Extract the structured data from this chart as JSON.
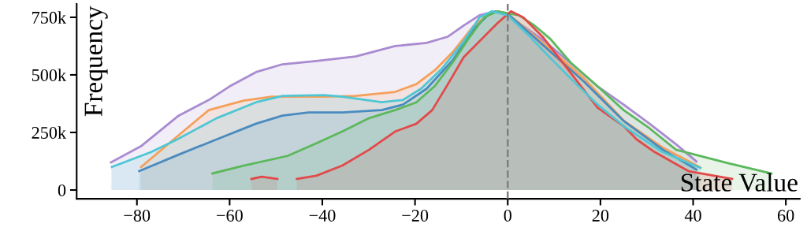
{
  "chart_data": {
    "type": "area",
    "xlabel": "State Value",
    "ylabel": "Frequency",
    "xlim": [
      -93,
      63
    ],
    "xticks": [
      {
        "value": -80,
        "label": "−80"
      },
      {
        "value": -60,
        "label": "−60"
      },
      {
        "value": -40,
        "label": "−40"
      },
      {
        "value": -20,
        "label": "−20"
      },
      0,
      20,
      40,
      60
    ],
    "ylim": [
      -38000,
      808000
    ],
    "yticks": [
      0,
      {
        "value": 250000,
        "label": "250k"
      },
      {
        "value": 500000,
        "label": "500k"
      },
      {
        "value": 750000,
        "label": "750k"
      }
    ],
    "grid": false,
    "ref_lines": [
      {
        "axis": "x",
        "value": 0,
        "label": null,
        "color": "#808080",
        "line_style": "dashed"
      }
    ],
    "series": [
      {
        "color": "#a98bd0",
        "x": [
          -85.6,
          -79,
          -71,
          -64.5,
          -60,
          -54.3,
          -48.6,
          -41.3,
          -32.8,
          -24.3,
          -17.5,
          -12.9,
          -9.5,
          -6.1,
          -2.7,
          0,
          8,
          19.4,
          25,
          30.6,
          36.3,
          40.7
        ],
        "values": [
          120000,
          192000,
          323000,
          391000,
          450000,
          512000,
          546000,
          560000,
          580000,
          625000,
          639000,
          666000,
          714000,
          759000,
          776000,
          760000,
          646000,
          450000,
          371000,
          288000,
          199000,
          124000
        ]
      },
      {
        "color": "#f5a05a",
        "x": [
          -79.1,
          -71.3,
          -64.5,
          -57,
          -51,
          -39.6,
          -32.8,
          -24.3,
          -19.7,
          -15.8,
          -11.9,
          -7.3,
          -3.9,
          -2,
          0,
          8,
          16.5,
          25,
          33.4,
          41.4
        ],
        "values": [
          100000,
          233000,
          347000,
          388000,
          405000,
          405000,
          409000,
          426000,
          460000,
          519000,
          598000,
          714000,
          766000,
          776000,
          765000,
          632000,
          484000,
          302000,
          185000,
          100000
        ]
      },
      {
        "color": "#4a8bbf",
        "x": [
          -79.5,
          -71.3,
          -62.8,
          -54.3,
          -48.6,
          -43,
          -35.7,
          -27.2,
          -22.6,
          -17.5,
          -11.9,
          -7.3,
          -3.9,
          -2.5,
          0,
          8,
          16.5,
          25,
          33.4,
          40.7
        ],
        "values": [
          82000,
          151000,
          220000,
          288000,
          323000,
          337000,
          337000,
          347000,
          371000,
          440000,
          563000,
          700000,
          766000,
          776000,
          765000,
          622000,
          470000,
          300000,
          176000,
          89000
        ]
      },
      {
        "color": "#5cb85c",
        "x": [
          -63.7,
          -57,
          -47.5,
          -41.3,
          -35.7,
          -29.9,
          -24.3,
          -19.7,
          -15.8,
          -11.9,
          -8.5,
          -5.1,
          -2.2,
          2.4,
          5.8,
          9.2,
          13.6,
          19.4,
          25,
          30.6,
          36.3,
          47.5,
          56.9
        ],
        "values": [
          72000,
          106000,
          148000,
          203000,
          254000,
          312000,
          347000,
          381000,
          450000,
          553000,
          656000,
          749000,
          776000,
          759000,
          714000,
          656000,
          553000,
          450000,
          347000,
          268000,
          175000,
          117000,
          72000
        ]
      },
      {
        "color": "#e24a4a",
        "x": [
          -55.3,
          -53.1,
          -49.7,
          -47.6,
          -45.5,
          -41.3,
          -35.7,
          -29.9,
          -24.3,
          -19.7,
          -16.3,
          -12.9,
          -9.5,
          -5.6,
          -2.2,
          0.7,
          3.4,
          7.5,
          13.6,
          19.4,
          25,
          27.8,
          31.7,
          39,
          48.4
        ],
        "values": [
          48000,
          58000,
          48000,
          null,
          48000,
          62000,
          106000,
          175000,
          254000,
          288000,
          347000,
          460000,
          577000,
          656000,
          725000,
          776000,
          749000,
          666000,
          508000,
          357000,
          278000,
          220000,
          165000,
          82000,
          48000
        ]
      },
      {
        "color": "#4fc6d4",
        "x": [
          -85.4,
          -76.9,
          -71.3,
          -62.8,
          -54.3,
          -48.6,
          -39.6,
          -35.7,
          -27.2,
          -22.6,
          -18.7,
          -14.1,
          -9.5,
          -6.1,
          -3.4,
          0,
          4.1,
          8,
          13.6,
          19.4,
          25,
          33.4,
          41.6
        ],
        "values": [
          100000,
          165000,
          220000,
          312000,
          381000,
          409000,
          412000,
          405000,
          381000,
          391000,
          440000,
          529000,
          646000,
          749000,
          776000,
          759000,
          680000,
          598000,
          484000,
          371000,
          278000,
          165000,
          96000
        ]
      }
    ]
  }
}
